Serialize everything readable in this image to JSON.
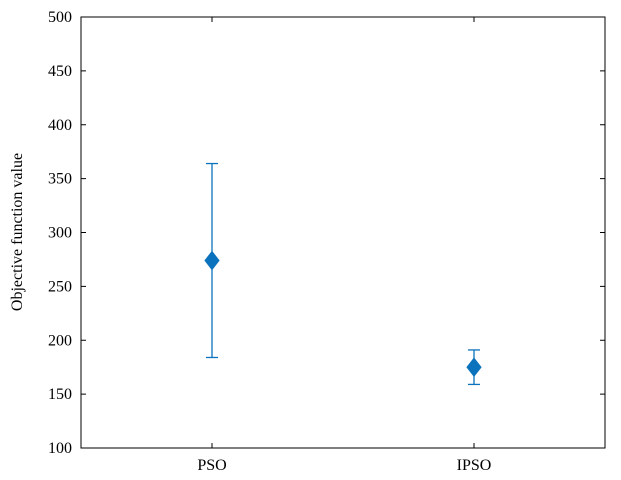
{
  "chart_data": {
    "type": "errorbar",
    "categories": [
      "PSO",
      "IPSO"
    ],
    "series": [
      {
        "values": [
          274,
          175
        ],
        "lower": [
          184,
          159
        ],
        "upper": [
          364,
          191
        ]
      }
    ],
    "xlabel": "",
    "ylabel": "Objective function value",
    "ylim": [
      100,
      500
    ],
    "yticks": [
      100,
      150,
      200,
      250,
      300,
      350,
      400,
      450,
      500
    ],
    "grid": false,
    "box": true,
    "colors": {
      "marker": "#0b72bd",
      "axis": "#000000"
    }
  }
}
